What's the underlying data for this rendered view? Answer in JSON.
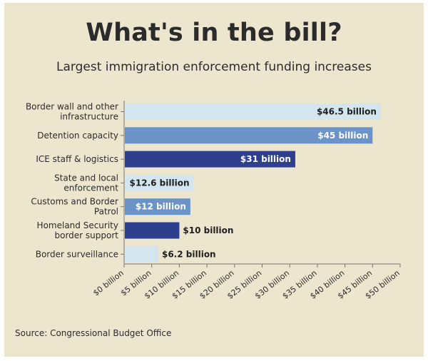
{
  "header": {
    "title": "What's in the bill?",
    "subtitle": "Largest immigration enforcement funding increases"
  },
  "footer": {
    "source": "Source: Congressional Budget Office"
  },
  "colors": {
    "background": "#ede6cf",
    "light": "#d3e5ee",
    "medium": "#6b93c7",
    "dark": "#2d3f8d"
  },
  "chart_data": {
    "type": "bar",
    "orientation": "horizontal",
    "categories": [
      [
        "Border wall and other",
        "infrastructure"
      ],
      [
        "Detention capacity"
      ],
      [
        "ICE staff & logistics"
      ],
      [
        "State and local",
        "enforcement"
      ],
      [
        "Customs and Border",
        "Patrol"
      ],
      [
        "Homeland Security",
        "border support"
      ],
      [
        "Border surveillance"
      ]
    ],
    "values": [
      46.5,
      45,
      31,
      12.6,
      12,
      10,
      6.2
    ],
    "value_labels": [
      "$46.5 billion",
      "$45 billion",
      "$31 billion",
      "$12.6 billion",
      "$12 billion",
      "$10 billion",
      "$6.2 billion"
    ],
    "bar_shades": [
      "light",
      "medium",
      "dark",
      "light",
      "medium",
      "dark",
      "light"
    ],
    "xlim": [
      0,
      50
    ],
    "xticks": [
      0,
      5,
      10,
      15,
      20,
      25,
      30,
      35,
      40,
      45,
      50
    ],
    "xtick_labels": [
      "$0 billion",
      "$5 billion",
      "$10 billion",
      "$15 billion",
      "$20 billion",
      "$25 billion",
      "$30 billion",
      "$35 billion",
      "$40 billion",
      "$45 billion",
      "$50 billion"
    ],
    "grid": false,
    "legend": "none"
  }
}
